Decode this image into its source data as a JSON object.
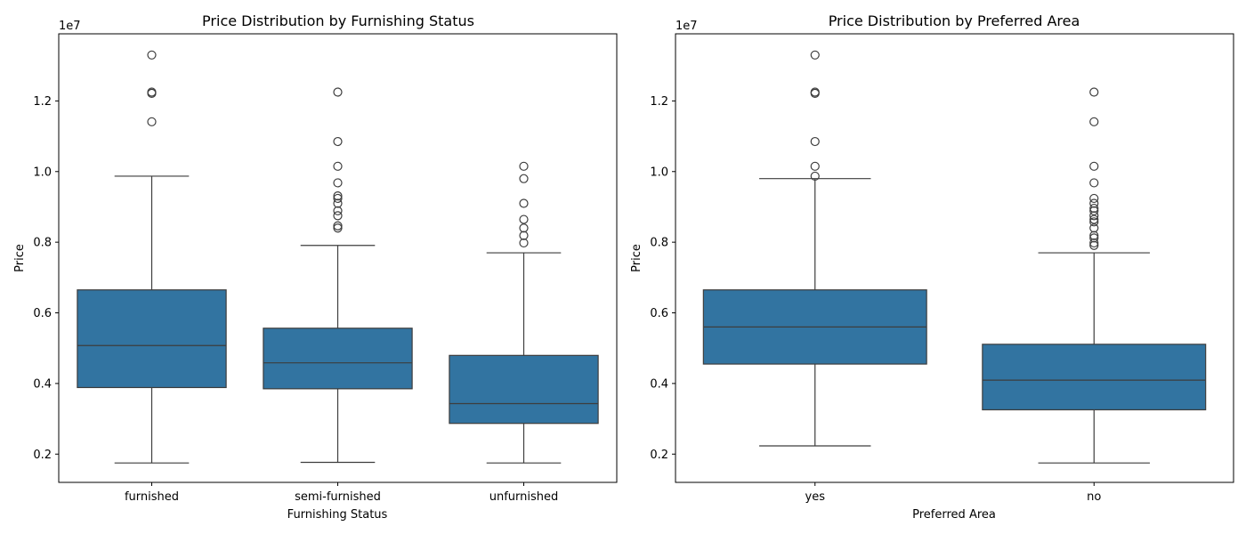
{
  "colors": {
    "box": "#3274a1",
    "line": "#3d3d3d",
    "outlier": "#3d3d3d"
  },
  "chart_data": [
    {
      "type": "box",
      "title": "Price Distribution by Furnishing Status",
      "xlabel": "Furnishing Status",
      "ylabel": "Price",
      "yscale_label": "1e7",
      "ylim": [
        1200000,
        13900000
      ],
      "yticks": [
        2000000,
        4000000,
        6000000,
        8000000,
        10000000,
        12000000
      ],
      "yticklabels": [
        "0.2",
        "0.4",
        "0.6",
        "0.8",
        "1.0",
        "1.2"
      ],
      "grid": false,
      "categories": [
        "furnished",
        "semi-furnished",
        "unfurnished"
      ],
      "boxes": [
        {
          "whisker_low": 1750000,
          "q1": 3885000,
          "median": 5075000,
          "q3": 6650000,
          "whisker_high": 9870000,
          "outliers": [
            13300000,
            12250000,
            12215000,
            11410000
          ]
        },
        {
          "whisker_low": 1767150,
          "q1": 3850000,
          "median": 4585000,
          "q3": 5565000,
          "whisker_high": 7910000,
          "outliers": [
            12250000,
            10850000,
            10150000,
            9681000,
            9310000,
            9240000,
            9100000,
            8890000,
            8750000,
            8463000,
            8400000
          ]
        },
        {
          "whisker_low": 1750000,
          "q1": 2870000,
          "median": 3430000,
          "q3": 4795000,
          "whisker_high": 7700000,
          "outliers": [
            10150000,
            9800000,
            9100000,
            8645000,
            8400000,
            8190000,
            7980000
          ]
        }
      ]
    },
    {
      "type": "box",
      "title": "Price Distribution by Preferred Area",
      "xlabel": "Preferred Area",
      "ylabel": "Price",
      "yscale_label": "1e7",
      "ylim": [
        1200000,
        13900000
      ],
      "yticks": [
        2000000,
        4000000,
        6000000,
        8000000,
        10000000,
        12000000
      ],
      "yticklabels": [
        "0.2",
        "0.4",
        "0.6",
        "0.8",
        "1.0",
        "1.2"
      ],
      "grid": false,
      "categories": [
        "yes",
        "no"
      ],
      "boxes": [
        {
          "whisker_low": 2233000,
          "q1": 4550000,
          "median": 5600000,
          "q3": 6650000,
          "whisker_high": 9800000,
          "outliers": [
            13300000,
            12250000,
            12215000,
            10850000,
            10150000,
            9870000
          ]
        },
        {
          "whisker_low": 1750000,
          "q1": 3255000,
          "median": 4095000,
          "q3": 5110000,
          "whisker_high": 7700000,
          "outliers": [
            12250000,
            11410000,
            10150000,
            9681000,
            9240000,
            9100000,
            8960000,
            8890000,
            8750000,
            8645000,
            8575000,
            8400000,
            8190000,
            8120000,
            7980000,
            7910000
          ]
        }
      ]
    }
  ]
}
